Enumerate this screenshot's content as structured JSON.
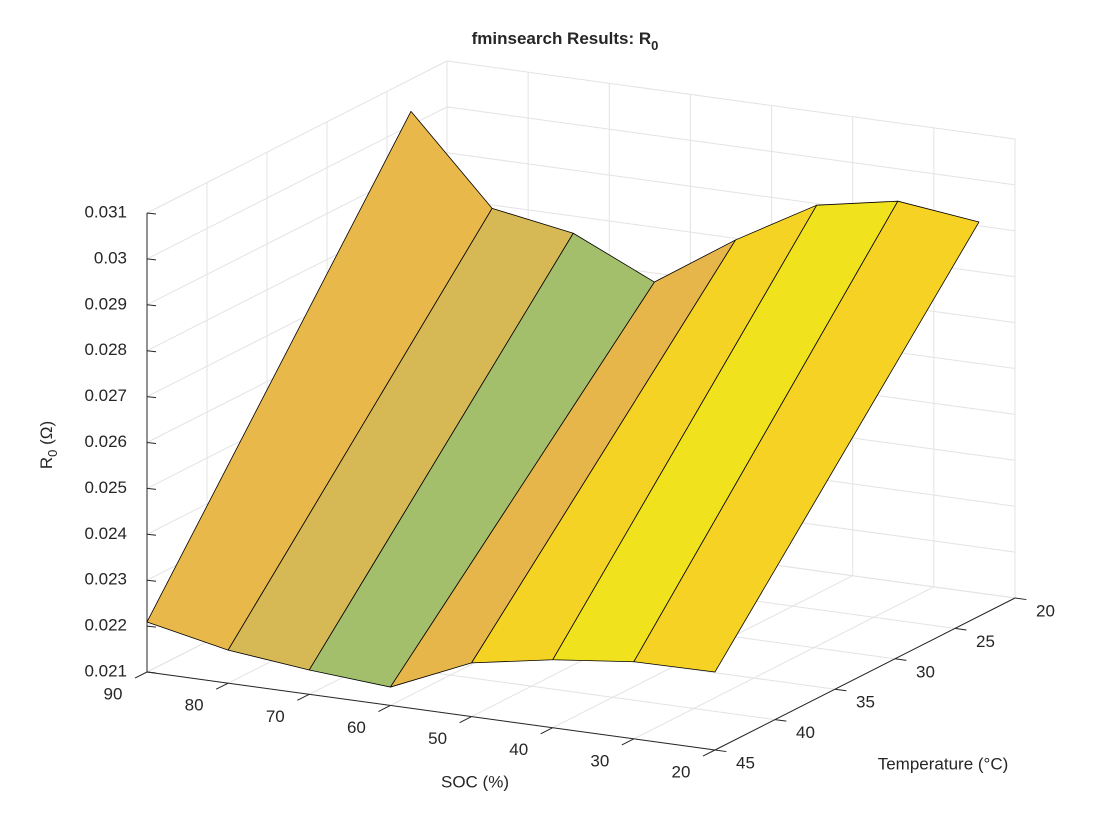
{
  "chart_data": {
    "type": "surface",
    "title": {
      "text": "fminsearch Results: R",
      "subscript": "0"
    },
    "xlabel": "SOC (%)",
    "ylabel": "Temperature (°C)",
    "zlabel": {
      "text": "R",
      "subscript": "0",
      "suffix": " (Ω)"
    },
    "xlim": [
      20,
      90
    ],
    "xticks": [
      20,
      30,
      40,
      50,
      60,
      70,
      80,
      90
    ],
    "ylim": [
      20,
      45
    ],
    "yticks": [
      20,
      25,
      30,
      35,
      40,
      45
    ],
    "zlim": [
      0.021,
      0.031
    ],
    "zticks": [
      0.021,
      0.022,
      0.023,
      0.024,
      0.025,
      0.026,
      0.027,
      0.028,
      0.029,
      0.03,
      0.031
    ],
    "grid": true,
    "surface": {
      "soc": [
        90,
        80,
        70,
        60,
        50,
        40,
        30,
        20
      ],
      "temperature": [
        45,
        23
      ],
      "z": [
        [
          0.02209,
          0.02172,
          0.02153,
          0.0214,
          0.02217,
          0.02248,
          0.02268,
          0.0227
        ],
        [
          0.0303,
          0.02843,
          0.02813,
          0.02731,
          0.02847,
          0.02947,
          0.0298,
          0.02959
        ]
      ],
      "face_colors": [
        "#e9b84a",
        "#d6b854",
        "#a4bf6c",
        "#e6b64b",
        "#f5d324",
        "#f0e21c",
        "#f5d224"
      ]
    }
  }
}
